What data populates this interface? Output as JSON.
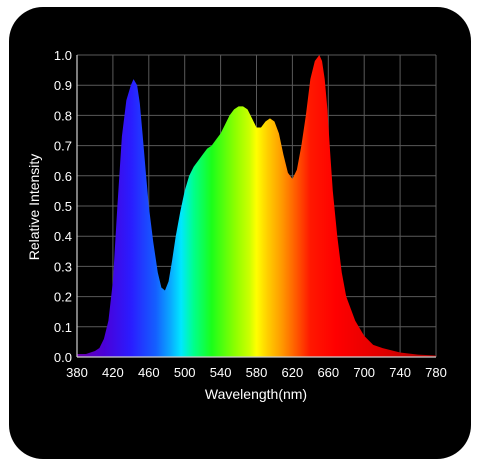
{
  "colors": {
    "panel_background": "#000000",
    "page_background": "#ffffff",
    "grid": "#5a5a5a",
    "text": "#ffffff",
    "axis": "#d0d0d0"
  },
  "chart_data": {
    "type": "area",
    "title": "",
    "xlabel": "Wavelength(nm)",
    "ylabel": "Relative Intensity",
    "xlim": [
      380,
      780
    ],
    "ylim": [
      0.0,
      1.0
    ],
    "grid": true,
    "legend": "none",
    "fill": "visible-spectrum gradient (violet → blue → cyan → green → yellow → orange → red)",
    "x_ticks": [
      "380",
      "420",
      "460",
      "500",
      "540",
      "580",
      "620",
      "660",
      "700",
      "740",
      "780"
    ],
    "y_ticks": [
      "0.0",
      "0.1",
      "0.2",
      "0.3",
      "0.4",
      "0.5",
      "0.6",
      "0.7",
      "0.8",
      "0.9",
      "1.0"
    ],
    "series": [
      {
        "x": [
          380,
          390,
          400,
          405,
          410,
          415,
          420,
          425,
          430,
          435,
          440,
          443,
          447,
          450,
          453,
          457,
          460,
          465,
          470,
          474,
          478,
          482,
          486,
          490,
          495,
          500,
          505,
          510,
          515,
          520,
          525,
          530,
          535,
          540,
          545,
          550,
          555,
          560,
          565,
          570,
          575,
          580,
          585,
          590,
          595,
          600,
          605,
          610,
          615,
          620,
          625,
          630,
          635,
          640,
          645,
          650,
          653,
          656,
          659,
          662,
          665,
          670,
          675,
          680,
          690,
          700,
          710,
          720,
          740,
          760,
          780
        ],
        "y": [
          0.01,
          0.01,
          0.02,
          0.03,
          0.06,
          0.12,
          0.25,
          0.5,
          0.73,
          0.85,
          0.9,
          0.92,
          0.9,
          0.84,
          0.74,
          0.6,
          0.5,
          0.38,
          0.28,
          0.23,
          0.22,
          0.25,
          0.32,
          0.4,
          0.48,
          0.55,
          0.6,
          0.63,
          0.65,
          0.67,
          0.69,
          0.7,
          0.72,
          0.74,
          0.77,
          0.8,
          0.82,
          0.83,
          0.83,
          0.82,
          0.79,
          0.76,
          0.76,
          0.78,
          0.79,
          0.78,
          0.74,
          0.67,
          0.61,
          0.59,
          0.62,
          0.7,
          0.8,
          0.92,
          0.98,
          1.0,
          0.98,
          0.92,
          0.82,
          0.68,
          0.55,
          0.4,
          0.28,
          0.2,
          0.12,
          0.07,
          0.04,
          0.03,
          0.015,
          0.008,
          0.005
        ]
      }
    ]
  }
}
